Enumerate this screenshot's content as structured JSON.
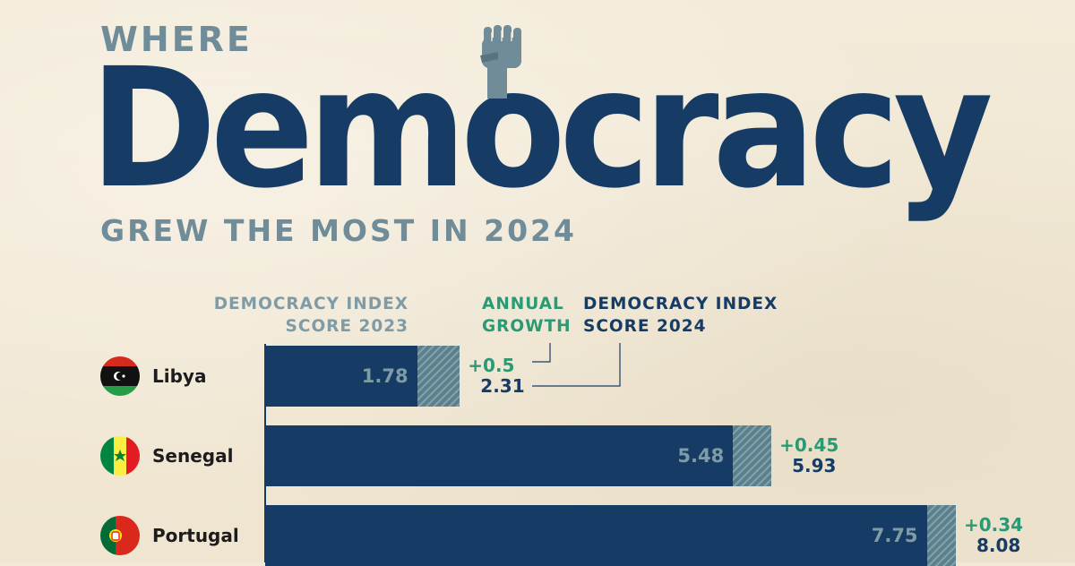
{
  "header": {
    "kicker": "WHERE",
    "title": "Democracy",
    "subtitle": "GREW THE MOST IN 2024"
  },
  "column_headers": {
    "score_2023": [
      "DEMOCRACY INDEX",
      "SCORE 2023"
    ],
    "growth": [
      "ANNUAL",
      "GROWTH"
    ],
    "score_2024": [
      "DEMOCRACY INDEX",
      "SCORE 2024"
    ]
  },
  "colors": {
    "background": "#f1e8d5",
    "navy": "#163c66",
    "slate": "#6f8c98",
    "green": "#2a9a74",
    "hatch": "#7ea2ac"
  },
  "icons": [
    "raised-fist-icon"
  ],
  "chart_data": {
    "type": "bar",
    "orientation": "horizontal",
    "stacked": true,
    "categories": [
      "Libya",
      "Senegal",
      "Portugal"
    ],
    "series": [
      {
        "name": "DEMOCRACY INDEX SCORE 2023",
        "values": [
          1.78,
          5.48,
          7.75
        ]
      },
      {
        "name": "ANNUAL GROWTH",
        "values": [
          0.5,
          0.45,
          0.34
        ],
        "labels": [
          "+0.5",
          "+0.45",
          "+0.34"
        ]
      }
    ],
    "totals": {
      "name": "DEMOCRACY INDEX SCORE 2024",
      "values": [
        2.31,
        5.93,
        8.08
      ]
    },
    "value_labels_2023": [
      "1.78",
      "5.48",
      "7.75"
    ],
    "total_labels": [
      "2.31",
      "5.93",
      "8.08"
    ],
    "xlim": [
      0,
      10
    ]
  }
}
